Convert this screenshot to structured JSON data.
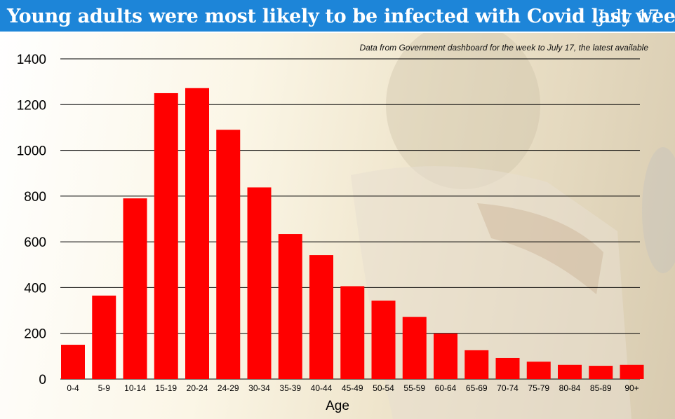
{
  "header": {
    "title": "Young adults were most likely to be infected with Covid last week",
    "date": "July 17",
    "bg_color": "#1d85d8"
  },
  "subtitle": "Data from Government dashboard for the week to July 17, the latest available",
  "chart_data": {
    "type": "bar",
    "title": "Young adults were most likely to be infected with Covid last week",
    "xlabel": "Age",
    "ylabel": "",
    "ylim": [
      0,
      1400
    ],
    "yticks": [
      0,
      200,
      400,
      600,
      800,
      1000,
      1200,
      1400
    ],
    "grid": true,
    "bar_color": "#ff0000",
    "categories": [
      "0-4",
      "5-9",
      "10-14",
      "15-19",
      "20-24",
      "24-29",
      "30-34",
      "35-39",
      "40-44",
      "45-49",
      "50-54",
      "55-59",
      "60-64",
      "65-69",
      "70-74",
      "75-79",
      "80-84",
      "85-89",
      "90+"
    ],
    "values": [
      150,
      365,
      790,
      1250,
      1272,
      1090,
      838,
      634,
      542,
      406,
      343,
      272,
      199,
      126,
      92,
      76,
      62,
      58,
      62
    ]
  }
}
